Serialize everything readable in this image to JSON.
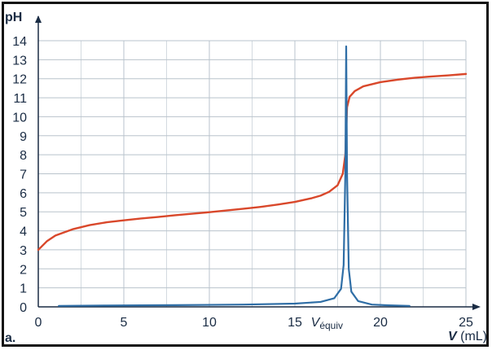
{
  "panel_label": "a.",
  "chart_data": {
    "type": "line",
    "title": "",
    "xlabel": "V (mL)",
    "ylabel": "pH",
    "xlim": [
      0,
      25
    ],
    "ylim": [
      0,
      14
    ],
    "xticks": [
      0,
      5,
      10,
      15,
      20,
      25
    ],
    "yticks": [
      0,
      1,
      2,
      3,
      4,
      5,
      6,
      7,
      8,
      9,
      10,
      11,
      12,
      13,
      14
    ],
    "grid": true,
    "x_minor_gridlines_per_major": 2,
    "equivalence_marker": {
      "text": "V",
      "subscript": "équiv",
      "x": 18.0
    },
    "series": [
      {
        "color": "#d9482b",
        "x": [
          0,
          0.5,
          1,
          2,
          3,
          4,
          5,
          6,
          7,
          8,
          9,
          10,
          11,
          12,
          13,
          14,
          15,
          16,
          16.5,
          17,
          17.5,
          17.8,
          17.95,
          18.05,
          18.2,
          18.5,
          19,
          20,
          21,
          22,
          23,
          24,
          25
        ],
        "y": [
          3.0,
          3.45,
          3.75,
          4.08,
          4.3,
          4.45,
          4.55,
          4.65,
          4.73,
          4.82,
          4.9,
          4.98,
          5.07,
          5.16,
          5.26,
          5.38,
          5.52,
          5.72,
          5.85,
          6.05,
          6.4,
          7.0,
          8.0,
          10.5,
          11.05,
          11.35,
          11.6,
          11.82,
          11.95,
          12.05,
          12.12,
          12.18,
          12.25
        ]
      },
      {
        "color": "#2f6ea6",
        "x": [
          1.2,
          4,
          8,
          12,
          15,
          16.5,
          17.3,
          17.7,
          17.85,
          17.95,
          18.0,
          18.05,
          18.15,
          18.3,
          18.7,
          19.5,
          20.5,
          21.7
        ],
        "y": [
          0.05,
          0.07,
          0.09,
          0.12,
          0.17,
          0.26,
          0.45,
          0.95,
          2.2,
          7.0,
          13.7,
          7.0,
          2.0,
          0.8,
          0.3,
          0.12,
          0.08,
          0.05
        ]
      }
    ]
  }
}
